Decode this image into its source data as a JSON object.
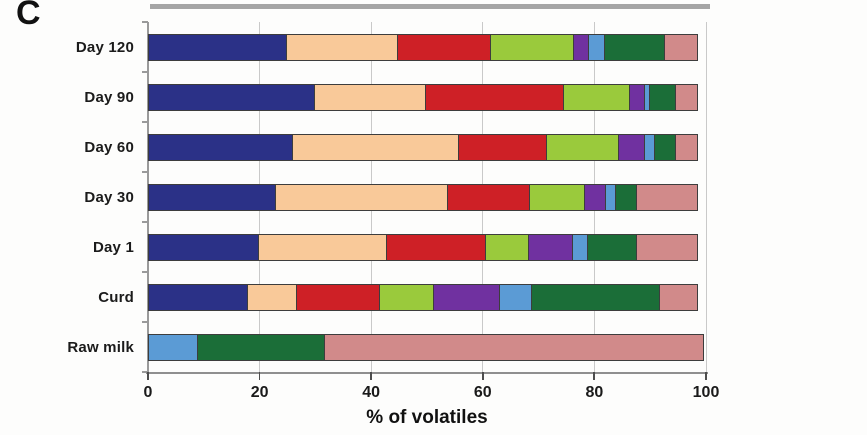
{
  "panel_label": "C",
  "chart_data": {
    "type": "bar",
    "orientation": "horizontal",
    "stacked": true,
    "title": "",
    "xlabel": "% of volatiles",
    "ylabel": "",
    "xlim": [
      0,
      100
    ],
    "xticks": [
      0,
      20,
      40,
      60,
      80,
      100
    ],
    "grid": "vertical",
    "legend_position": "none",
    "categories": [
      "Day 120",
      "Day 90",
      "Day 60",
      "Day 30",
      "Day 1",
      "Curd",
      "Raw milk"
    ],
    "series": [
      {
        "name": "navy-blue",
        "color": "#2b3187",
        "values": [
          25,
          30,
          26,
          23,
          20,
          18,
          0
        ]
      },
      {
        "name": "peach",
        "color": "#f9c999",
        "values": [
          20,
          20,
          30,
          31,
          23,
          9,
          0
        ]
      },
      {
        "name": "red",
        "color": "#ce2026",
        "values": [
          17,
          25,
          16,
          15,
          18,
          15,
          0
        ]
      },
      {
        "name": "light-green",
        "color": "#9aca3c",
        "values": [
          15,
          12,
          13,
          10,
          8,
          10,
          0
        ]
      },
      {
        "name": "purple",
        "color": "#7031a0",
        "values": [
          3,
          3,
          5,
          4,
          8,
          12,
          0
        ]
      },
      {
        "name": "light-blue",
        "color": "#5b9bd5",
        "values": [
          3,
          1,
          2,
          2,
          3,
          6,
          9
        ]
      },
      {
        "name": "dark-green",
        "color": "#1b6e38",
        "values": [
          11,
          5,
          4,
          4,
          9,
          23,
          23
        ]
      },
      {
        "name": "salmon",
        "color": "#d18a8a",
        "values": [
          6,
          4,
          4,
          11,
          11,
          7,
          68
        ]
      }
    ]
  },
  "style_colors": {
    "gridline": "#c9c9c9",
    "axis": "#8f8f8f",
    "top_divider": "#a5a5a5",
    "segment_border": "#3d3d3d"
  }
}
